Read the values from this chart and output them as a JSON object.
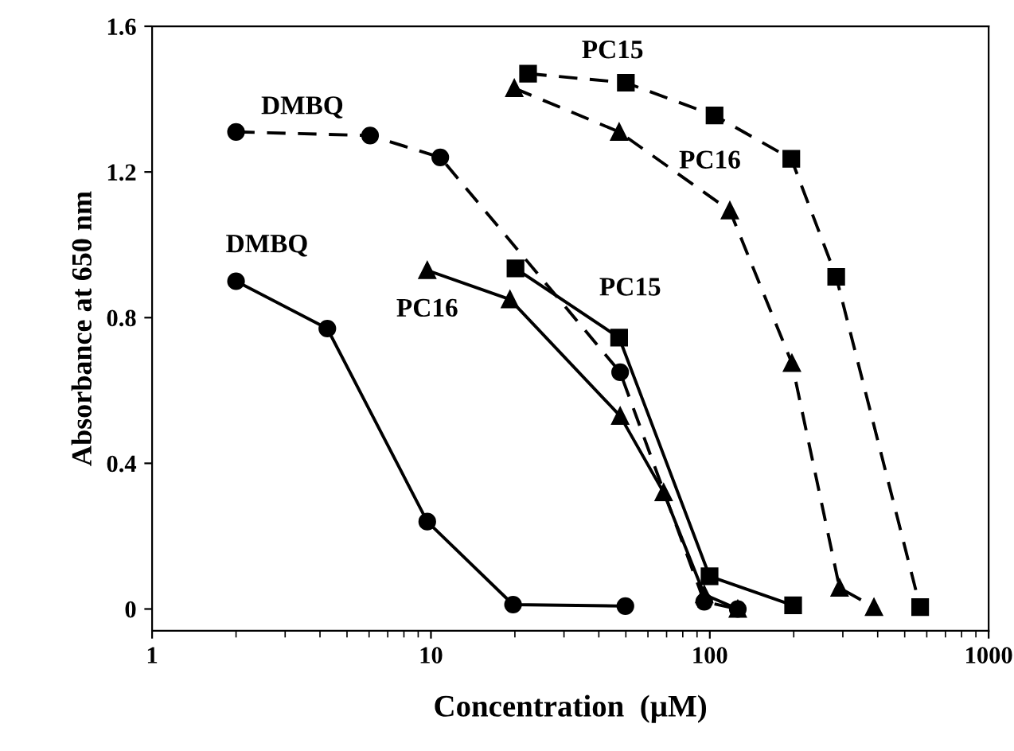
{
  "chart_data": {
    "type": "line",
    "xlabel": "Concentration  (µM)",
    "ylabel": "Absorbance at 650 nm",
    "log": "x",
    "xlim": [
      1,
      1000
    ],
    "xticks": [
      1,
      10,
      100,
      1000
    ],
    "ylim": [
      -0.06,
      1.6
    ],
    "yticks": [
      0,
      0.4,
      0.8,
      1.2,
      1.6
    ],
    "grid": false,
    "legend": false,
    "series": [
      {
        "name": "DMBQ",
        "color": "#000000",
        "marker": "circle",
        "line_style": "solid",
        "x": [
          2,
          4.25,
          9.7,
          19.7,
          49.8
        ],
        "values": [
          0.9,
          0.77,
          0.24,
          0.012,
          0.008
        ]
      },
      {
        "name": "DMBQ",
        "color": "#000000",
        "marker": "circle",
        "line_style": "dashed",
        "x": [
          2,
          6.05,
          10.8,
          47.7,
          95.5,
          126
        ],
        "values": [
          1.31,
          1.3,
          1.24,
          0.65,
          0.02,
          0.0
        ]
      },
      {
        "name": "PC16",
        "color": "#000000",
        "marker": "triangle",
        "line_style": "solid",
        "x": [
          9.7,
          19.2,
          47.7,
          68.3,
          95.5,
          126
        ],
        "values": [
          0.93,
          0.85,
          0.53,
          0.32,
          0.04,
          0.0
        ]
      },
      {
        "name": "PC15",
        "color": "#000000",
        "marker": "square",
        "line_style": "solid",
        "x": [
          20.1,
          47.3,
          99.8,
          199
        ],
        "values": [
          0.935,
          0.745,
          0.09,
          0.01
        ]
      },
      {
        "name": "PC15",
        "color": "#000000",
        "marker": "square",
        "line_style": "dashed",
        "x": [
          22.3,
          50,
          104,
          196,
          284,
          568
        ],
        "values": [
          1.47,
          1.445,
          1.355,
          1.236,
          0.912,
          0.005
        ]
      },
      {
        "name": "PC16",
        "color": "#000000",
        "marker": "triangle",
        "line_style": "dashed",
        "x": [
          19.9,
          47.3,
          118,
          197,
          292,
          388
        ],
        "values": [
          1.43,
          1.31,
          1.094,
          0.675,
          0.058,
          0.005
        ]
      }
    ]
  }
}
